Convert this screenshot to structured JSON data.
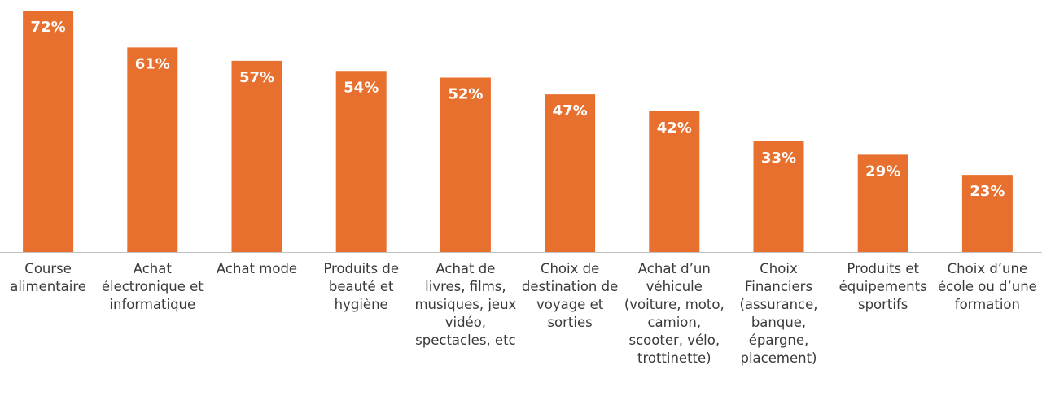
{
  "chart_data": {
    "type": "bar",
    "categories": [
      "Course alimentaire",
      "Achat électronique et informatique",
      "Achat mode",
      "Produits de beauté et hygiène",
      "Achat de livres, films, musiques, jeux vidéo, spectacles, etc",
      "Choix de destination de voyage et sorties",
      "Achat d’un véhicule (voiture, moto, camion, scooter, vélo, trottinette)",
      "Choix Financiers (assurance, banque, épargne, placement)",
      "Produits et équipements sportifs",
      "Choix d’une école ou d’une formation"
    ],
    "values": [
      72,
      61,
      57,
      54,
      52,
      47,
      42,
      33,
      29,
      23
    ],
    "value_labels": [
      "72%",
      "61%",
      "57%",
      "54%",
      "52%",
      "47%",
      "42%",
      "33%",
      "29%",
      "23%"
    ],
    "color": "#e8702f"
  }
}
